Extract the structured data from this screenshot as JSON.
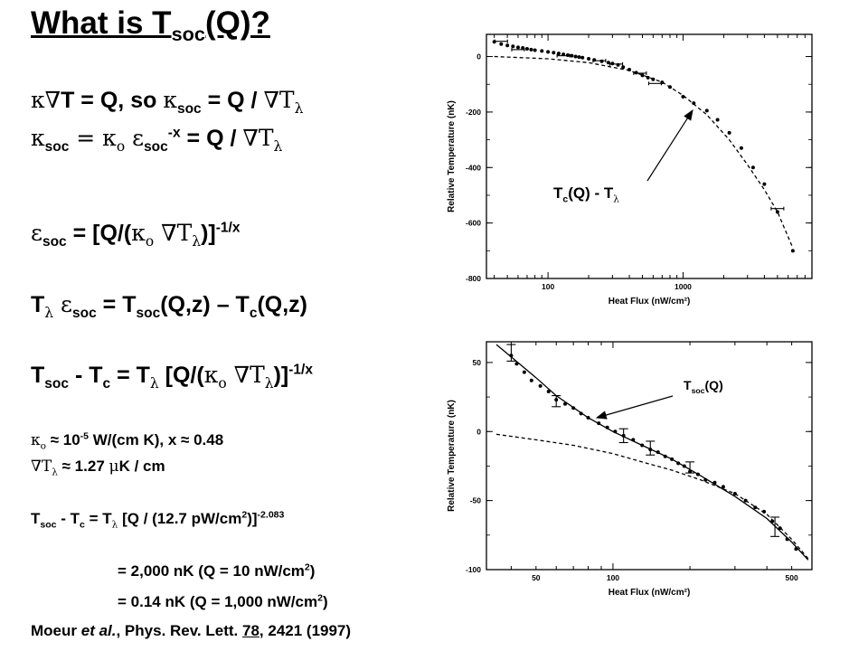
{
  "slide": {
    "title_main": "What is T",
    "title_sub": "soc",
    "title_tail": "(Q)?",
    "eq1": {
      "a": "κ∇",
      "b": "T = Q, so ",
      "c": "κ",
      "d": "soc",
      "e": " = Q / ",
      "f": "∇T",
      "g": "λ"
    },
    "eq2": {
      "a": "κ",
      "b": "soc",
      "c": " = κ",
      "d": "o",
      "e": " ε",
      "f": "soc",
      "g": "-x",
      "h": " = Q / ",
      "i": "∇T",
      "j": "λ"
    },
    "eq3": {
      "a": "ε",
      "b": "soc",
      "c": " = [Q/(",
      "d": "κ",
      "e": "o",
      "f": " ∇T",
      "g": "λ",
      "h": ")]",
      "i": "-1/x"
    },
    "eq4": {
      "a": "T",
      "b": "λ",
      "c": " ε",
      "d": "soc",
      "e": " = T",
      "f": "soc",
      "g": "(Q,z) – T",
      "h": "c",
      "i": "(Q,z)"
    },
    "eq5": {
      "a": "T",
      "b": "soc",
      "c": " - T",
      "d": "c",
      "e": " =  T",
      "f": "λ",
      "g": " [Q/(",
      "h": "κ",
      "i": "o",
      "j": " ∇T",
      "k": "λ",
      "l": ")]",
      "m": "-1/x"
    },
    "eq6": {
      "a": "κ",
      "b": "o",
      "c": " ≈ 10",
      "d": "-5",
      "e": " W/(cm K), x ≈ 0.48"
    },
    "eq7": {
      "a": "∇T",
      "b": "λ",
      "c": " ≈ 1.27 ",
      "d": "μ",
      "e": "K / cm"
    },
    "eq8": {
      "a": "T",
      "b": "soc",
      "c": " - T",
      "d": "c",
      "e": " = T",
      "f": "λ",
      "g": "  [Q / (12.7 pW/cm",
      "h": "2",
      "i": ")]",
      "j": "-2.083"
    },
    "eq9": {
      "a": "= 2,000 nK (Q = 10 nW/cm",
      "b": "2",
      "c": ")"
    },
    "eq10": {
      "a": "= 0.14 nK (Q = 1,000 nW/cm",
      "b": "2",
      "c": ")"
    },
    "citation": {
      "a": "Moeur ",
      "b": "et al.",
      "c": ", Phys. Rev. Lett. ",
      "d": "78",
      "e": ", 2421 (1997)"
    }
  },
  "annotations": {
    "top": {
      "a": "T",
      "b": "c",
      "c": "(Q) - T",
      "d": "λ"
    },
    "bottom": {
      "a": "T",
      "b": "soc",
      "c": "(Q)"
    }
  },
  "chart_data": [
    {
      "type": "scatter",
      "xlabel": "Heat Flux (nW/cm²)",
      "ylabel": "Relative Temperature (nK)",
      "xscale": "log",
      "xlim": [
        35,
        9000
      ],
      "ylim": [
        -800,
        80
      ],
      "x_ticks": [
        100,
        1000
      ],
      "y_ticks": [
        0,
        -200,
        -400,
        -600,
        -800
      ],
      "grid": false,
      "series": [
        {
          "style": "points",
          "points": [
            [
              40,
              53
            ],
            [
              45,
              45
            ],
            [
              50,
              40
            ],
            [
              55,
              37
            ],
            [
              60,
              33
            ],
            [
              65,
              31
            ],
            [
              70,
              28
            ],
            [
              75,
              25
            ],
            [
              80,
              23
            ],
            [
              90,
              20
            ],
            [
              100,
              17
            ],
            [
              110,
              14
            ],
            [
              120,
              11
            ],
            [
              130,
              8
            ],
            [
              140,
              5
            ],
            [
              150,
              3
            ],
            [
              160,
              0
            ],
            [
              170,
              -2
            ],
            [
              180,
              -4
            ],
            [
              200,
              -8
            ],
            [
              220,
              -12
            ],
            [
              250,
              -17
            ],
            [
              280,
              -22
            ],
            [
              300,
              -25
            ],
            [
              330,
              -30
            ],
            [
              360,
              -38
            ],
            [
              400,
              -47
            ],
            [
              450,
              -58
            ],
            [
              500,
              -68
            ],
            [
              550,
              -76
            ],
            [
              600,
              -82
            ],
            [
              700,
              -93
            ],
            [
              800,
              -110
            ],
            [
              1000,
              -145
            ],
            [
              1200,
              -168
            ],
            [
              1500,
              -195
            ],
            [
              1800,
              -228
            ],
            [
              2200,
              -275
            ],
            [
              2700,
              -330
            ],
            [
              3300,
              -400
            ],
            [
              4000,
              -460
            ],
            [
              5000,
              -560
            ],
            [
              6500,
              -700
            ]
          ]
        },
        {
          "style": "error-bars",
          "points": [
            [
              45,
              55,
              8
            ],
            [
              60,
              25,
              8
            ],
            [
              130,
              3,
              8
            ],
            [
              240,
              -15,
              8
            ],
            [
              320,
              -27,
              8
            ],
            [
              480,
              -60,
              8
            ],
            [
              620,
              -97,
              8
            ],
            [
              5000,
              -548,
              8
            ]
          ]
        },
        {
          "style": "dashed-curve",
          "points": [
            [
              40,
              0
            ],
            [
              100,
              -8
            ],
            [
              200,
              -22
            ],
            [
              400,
              -50
            ],
            [
              700,
              -92
            ],
            [
              1000,
              -140
            ],
            [
              1500,
              -210
            ],
            [
              2200,
              -300
            ],
            [
              3000,
              -390
            ],
            [
              4000,
              -480
            ],
            [
              5000,
              -560
            ],
            [
              6500,
              -690
            ]
          ]
        }
      ]
    },
    {
      "type": "scatter",
      "xlabel": "Heat Flux (nW/cm²)",
      "ylabel": "Relative Temperature (nK)",
      "xscale": "log",
      "xlim": [
        32,
        600
      ],
      "ylim": [
        -100,
        65
      ],
      "x_ticks": [
        50,
        100,
        500
      ],
      "y_ticks": [
        50,
        0,
        -50,
        -100
      ],
      "grid": false,
      "series": [
        {
          "style": "points",
          "points": [
            [
              40,
              55
            ],
            [
              42,
              49
            ],
            [
              45,
              43
            ],
            [
              48,
              37
            ],
            [
              52,
              33
            ],
            [
              56,
              29
            ],
            [
              60,
              23
            ],
            [
              65,
              20
            ],
            [
              70,
              17
            ],
            [
              75,
              13
            ],
            [
              80,
              10
            ],
            [
              88,
              6
            ],
            [
              95,
              3
            ],
            [
              102,
              0
            ],
            [
              110,
              -3
            ],
            [
              120,
              -6
            ],
            [
              130,
              -10
            ],
            [
              140,
              -13
            ],
            [
              150,
              -15
            ],
            [
              160,
              -18
            ],
            [
              170,
              -20
            ],
            [
              180,
              -23
            ],
            [
              190,
              -25
            ],
            [
              200,
              -29
            ],
            [
              215,
              -31
            ],
            [
              230,
              -35
            ],
            [
              250,
              -37
            ],
            [
              270,
              -40
            ],
            [
              300,
              -45
            ],
            [
              330,
              -50
            ],
            [
              360,
              -55
            ],
            [
              390,
              -58
            ],
            [
              420,
              -65
            ],
            [
              450,
              -70
            ],
            [
              480,
              -78
            ],
            [
              520,
              -85
            ]
          ]
        },
        {
          "style": "error-bars",
          "points": [
            [
              40,
              57,
              6
            ],
            [
              60,
              22,
              4
            ],
            [
              110,
              -3,
              5
            ],
            [
              140,
              -12,
              5
            ],
            [
              200,
              -26,
              4
            ],
            [
              430,
              -69,
              7
            ]
          ]
        },
        {
          "style": "solid-curve",
          "points": [
            [
              35,
              63
            ],
            [
              40,
              54
            ],
            [
              50,
              39
            ],
            [
              60,
              26
            ],
            [
              80,
              10
            ],
            [
              100,
              0
            ],
            [
              130,
              -10
            ],
            [
              170,
              -20
            ],
            [
              220,
              -32
            ],
            [
              300,
              -47
            ],
            [
              400,
              -63
            ],
            [
              500,
              -80
            ],
            [
              580,
              -93
            ]
          ]
        },
        {
          "style": "dashed-curve",
          "points": [
            [
              35,
              -2
            ],
            [
              50,
              -6
            ],
            [
              70,
              -10
            ],
            [
              100,
              -16
            ],
            [
              130,
              -22
            ],
            [
              170,
              -28
            ],
            [
              220,
              -35
            ],
            [
              300,
              -45
            ],
            [
              400,
              -60
            ],
            [
              500,
              -78
            ],
            [
              580,
              -92
            ]
          ]
        }
      ]
    }
  ]
}
